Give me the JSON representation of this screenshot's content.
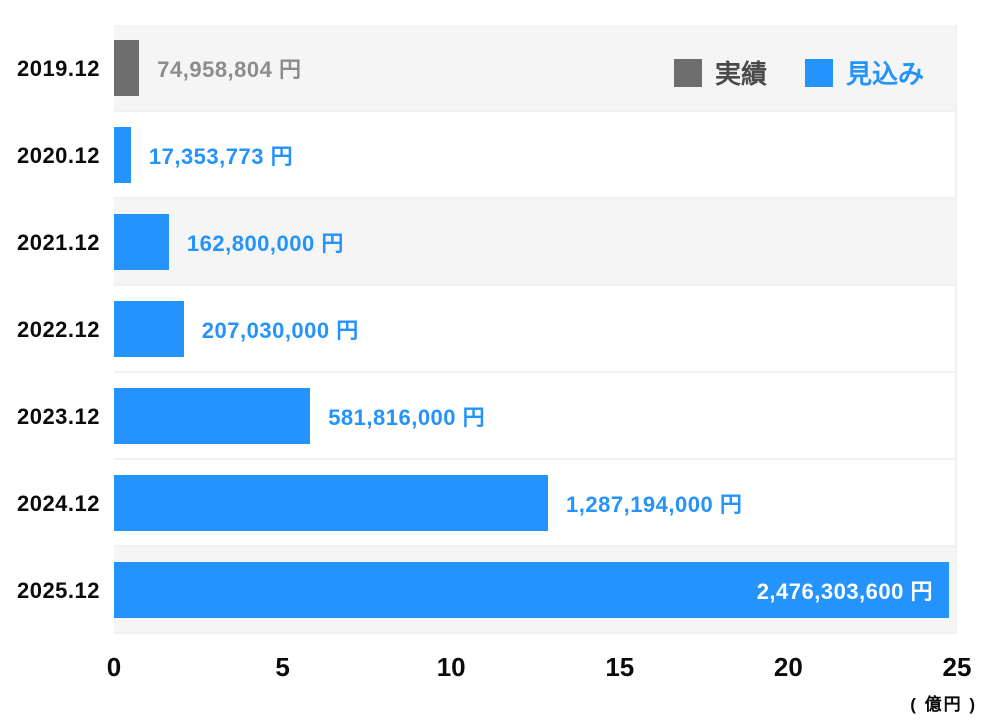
{
  "chart_data": {
    "type": "bar",
    "orientation": "horizontal",
    "title": "",
    "categories": [
      "2019.12",
      "2020.12",
      "2021.12",
      "2022.12",
      "2023.12",
      "2024.12",
      "2025.12"
    ],
    "rows": [
      {
        "category": "2019.12",
        "series": "実績",
        "value_yen": 74958804,
        "label": "74,958,804 円",
        "bar_color": "#6e6e6e",
        "label_color": "#8c8c8c",
        "label_placement": "outside",
        "striped": true
      },
      {
        "category": "2020.12",
        "series": "見込み",
        "value_yen": 17353773,
        "label": "17,353,773 円",
        "bar_color": "#2493fc",
        "label_color": "#2493fc",
        "label_placement": "outside",
        "striped": false
      },
      {
        "category": "2021.12",
        "series": "見込み",
        "value_yen": 162800000,
        "label": "162,800,000 円",
        "bar_color": "#2493fc",
        "label_color": "#2493fc",
        "label_placement": "outside",
        "striped": true
      },
      {
        "category": "2022.12",
        "series": "見込み",
        "value_yen": 207030000,
        "label": "207,030,000 円",
        "bar_color": "#2493fc",
        "label_color": "#2493fc",
        "label_placement": "outside",
        "striped": false
      },
      {
        "category": "2023.12",
        "series": "見込み",
        "value_yen": 581816000,
        "label": "581,816,000 円",
        "bar_color": "#2493fc",
        "label_color": "#2493fc",
        "label_placement": "outside",
        "striped": false
      },
      {
        "category": "2024.12",
        "series": "見込み",
        "value_yen": 1287194000,
        "label": "1,287,194,000 円",
        "bar_color": "#2493fc",
        "label_color": "#2493fc",
        "label_placement": "outside",
        "striped": false
      },
      {
        "category": "2025.12",
        "series": "見込み",
        "value_yen": 2476303600,
        "label": "2,476,303,600 円",
        "bar_color": "#2493fc",
        "label_color": "#ffffff",
        "label_placement": "inside",
        "striped": true
      }
    ],
    "x_axis": {
      "ticks": [
        "0",
        "5",
        "10",
        "15",
        "20",
        "25"
      ],
      "max_oku": 25,
      "unit_label": "( 億円 )"
    },
    "legend": [
      {
        "label": "実績",
        "swatch_color": "#6e6e6e",
        "text_color": "#4a4a4a"
      },
      {
        "label": "見込み",
        "swatch_color": "#2493fc",
        "text_color": "#2493fc"
      }
    ],
    "legend_position": "top-right",
    "grid": false,
    "stripe_color": "#f5f5f6",
    "separator_color": "#f1f1f2"
  }
}
